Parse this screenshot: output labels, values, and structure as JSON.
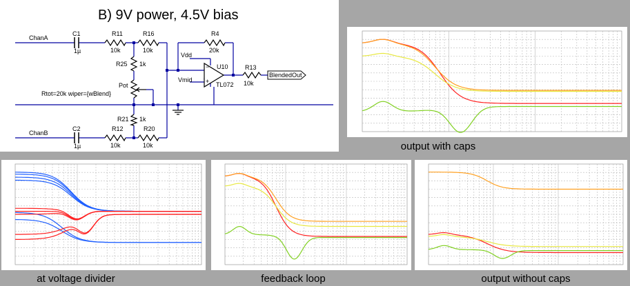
{
  "schematic": {
    "title": "B) 9V power, 4.5V bias",
    "labels": {
      "chanA": "ChanA",
      "chanB": "ChanB",
      "c1": "C1",
      "c1_val": "1µ",
      "c2": "C2",
      "c2_val": "1µ",
      "r11": "R11",
      "r11_val": "10k",
      "r12": "R12",
      "r12_val": "10k",
      "r16": "R16",
      "r16_val": "10k",
      "r20": "R20",
      "r20_val": "10k",
      "r25": "R25",
      "r25_val": "1k",
      "r21": "R21",
      "r21_val": "1k",
      "pot": "Pot",
      "pot_spec": "Rtot=20k wiper={wBlend}",
      "r4": "R4",
      "r4_val": "20k",
      "r13": "R13",
      "r13_val": "10k",
      "u10": "U10",
      "opamp": "TL072",
      "vdd": "Vdd",
      "vmid": "Vmid",
      "out": "BlendedOut"
    }
  },
  "captions": {
    "top_right": "output with caps",
    "bottom_left": "at voltage divider",
    "bottom_middle": "feedback loop",
    "bottom_right": "output without caps"
  },
  "colors": {
    "red": "#ff2020",
    "yellow": "#e8e840",
    "green": "#80d020",
    "orange": "#ffa020",
    "blue": "#2060ff",
    "dark_red": "#e01010",
    "grid": "#b0b0b0",
    "wire": "#0000a0"
  }
}
